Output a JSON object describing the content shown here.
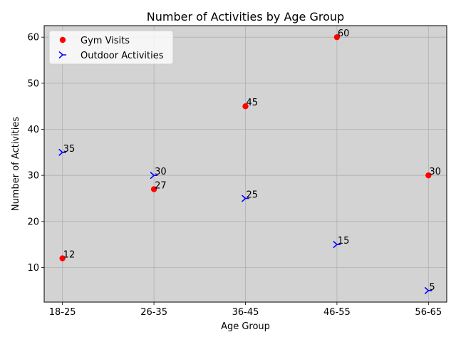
{
  "chart_data": {
    "type": "scatter",
    "title": "Number of Activities by Age Group",
    "xlabel": "Age Group",
    "ylabel": "Number of Activities",
    "categories": [
      "18-25",
      "26-35",
      "36-45",
      "46-55",
      "56-65"
    ],
    "ylim": [
      2.5,
      62.5
    ],
    "yticks": [
      10,
      20,
      30,
      40,
      50,
      60
    ],
    "grid": true,
    "background": "#d3d3d3",
    "legend_position": "top-left",
    "series": [
      {
        "name": "Gym Visits",
        "marker": "circle",
        "color": "#ff0000",
        "values": [
          12,
          27,
          45,
          60,
          30
        ]
      },
      {
        "name": "Outdoor Activities",
        "marker": "tri-right",
        "color": "#0000ff",
        "values": [
          35,
          30,
          25,
          15,
          5
        ]
      }
    ]
  }
}
